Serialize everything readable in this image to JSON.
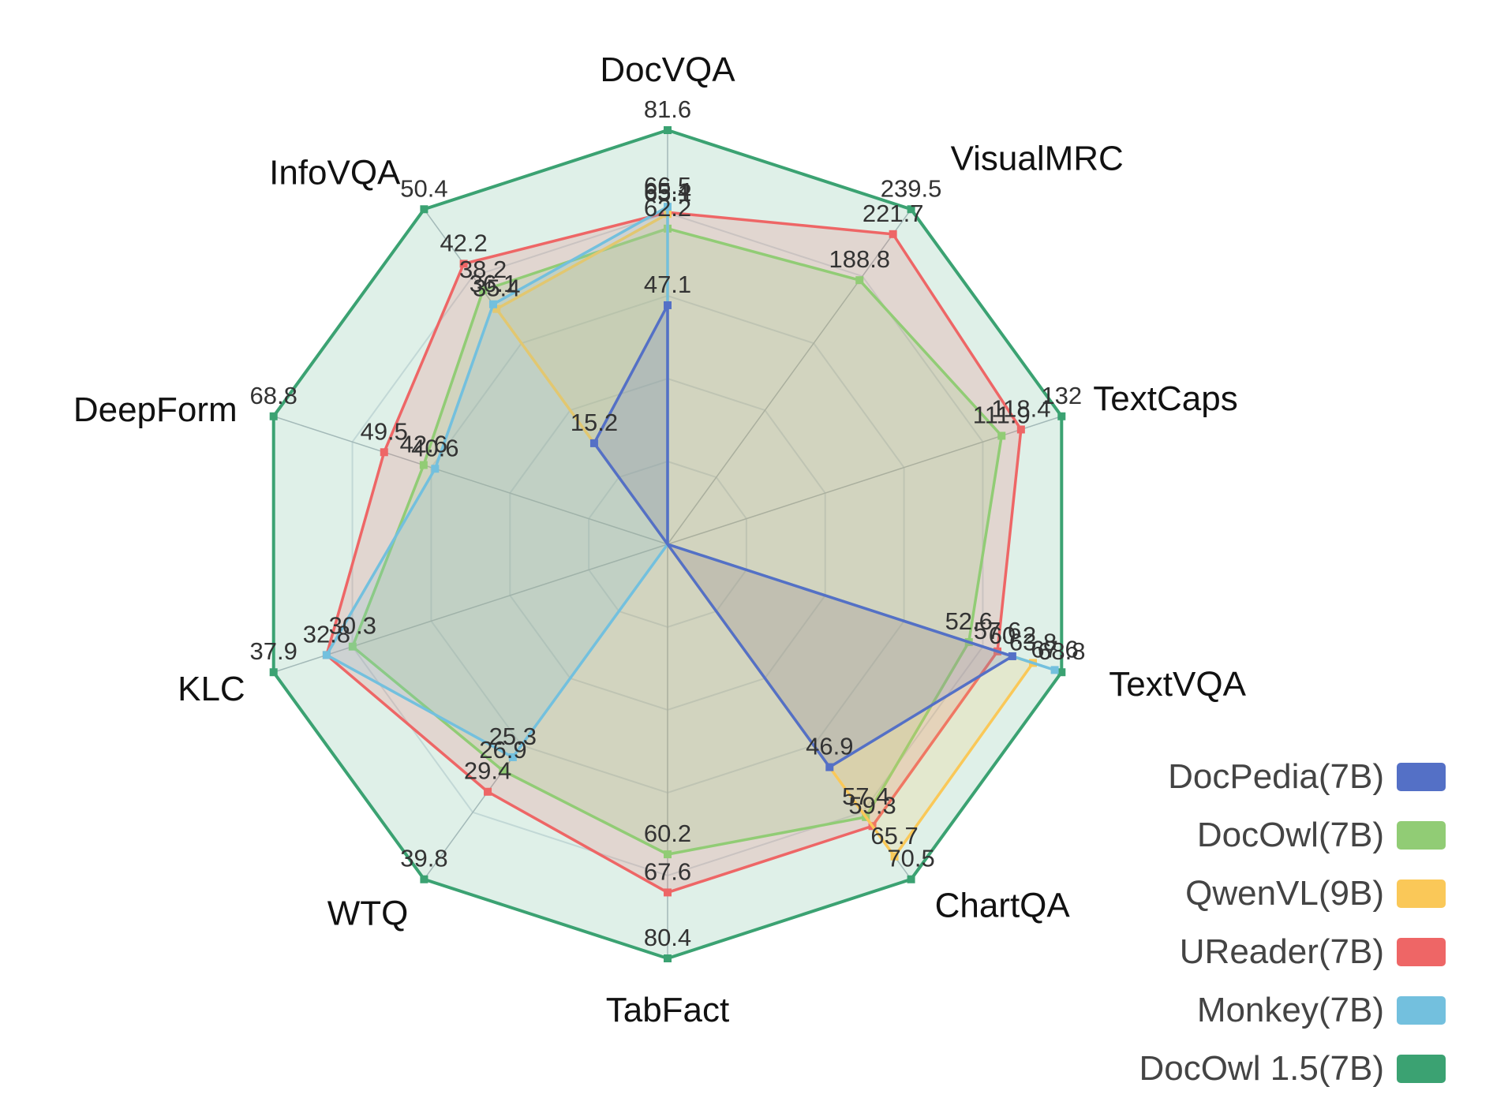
{
  "chart_data": {
    "type": "radar",
    "axes": [
      "DocVQA",
      "VisualMRC",
      "TextCaps",
      "TextVQA",
      "ChartQA",
      "TabFact",
      "WTQ",
      "KLC",
      "DeepForm",
      "InfoVQA"
    ],
    "axis_max": [
      81.6,
      239.5,
      132,
      68.8,
      70.5,
      80.4,
      39.8,
      37.9,
      68.8,
      50.4
    ],
    "grid": true,
    "legend_position": "bottom-right",
    "series": [
      {
        "name": "DocPedia(7B)",
        "color": "#5470c6",
        "values": [
          47.1,
          null,
          null,
          60.2,
          46.9,
          null,
          null,
          null,
          null,
          15.2
        ],
        "labels": [
          "47.1",
          "",
          "",
          "60.2",
          "46.9",
          "",
          "",
          "",
          "",
          "15.2"
        ]
      },
      {
        "name": "DocOwl(7B)",
        "color": "#91cc75",
        "values": [
          62.2,
          188.8,
          111.9,
          52.6,
          57.4,
          60.2,
          26.9,
          30.3,
          42.6,
          38.2
        ],
        "labels": [
          "62.2",
          "188.8",
          "111.9",
          "52.6",
          "57.4",
          "60.2",
          "26.9",
          "30.3",
          "42.6",
          "38.2"
        ]
      },
      {
        "name": "QwenVL(9B)",
        "color": "#fac858",
        "values": [
          65.1,
          null,
          null,
          63.8,
          65.7,
          null,
          null,
          null,
          null,
          35.4
        ],
        "labels": [
          "65.1",
          "",
          "",
          "63.8",
          "65.7",
          "",
          "",
          "",
          "",
          "35.4"
        ]
      },
      {
        "name": "UReader(7B)",
        "color": "#ee6666",
        "values": [
          65.4,
          221.7,
          118.4,
          57.6,
          59.3,
          67.6,
          29.4,
          32.8,
          49.5,
          42.2
        ],
        "labels": [
          "65.4",
          "221.7",
          "118.4",
          "57.6",
          "59.3",
          "67.6",
          "29.4",
          "32.8",
          "49.5",
          "42.2"
        ]
      },
      {
        "name": "Monkey(7B)",
        "color": "#73c0de",
        "values": [
          66.5,
          null,
          null,
          67.6,
          null,
          null,
          25.3,
          32.8,
          40.6,
          36.1
        ],
        "labels": [
          "66.5",
          "",
          "",
          "67.6",
          "",
          "",
          "25.3",
          "",
          "40.6",
          "36.1"
        ]
      },
      {
        "name": "DocOwl 1.5(7B)",
        "color": "#3ba272",
        "values": [
          81.6,
          239.5,
          132,
          68.8,
          70.5,
          80.4,
          39.8,
          37.9,
          68.8,
          50.4
        ],
        "labels": [
          "81.6",
          "239.5",
          "132",
          "68.8",
          "70.5",
          "80.4",
          "39.8",
          "37.9",
          "68.8",
          "50.4"
        ]
      }
    ]
  }
}
